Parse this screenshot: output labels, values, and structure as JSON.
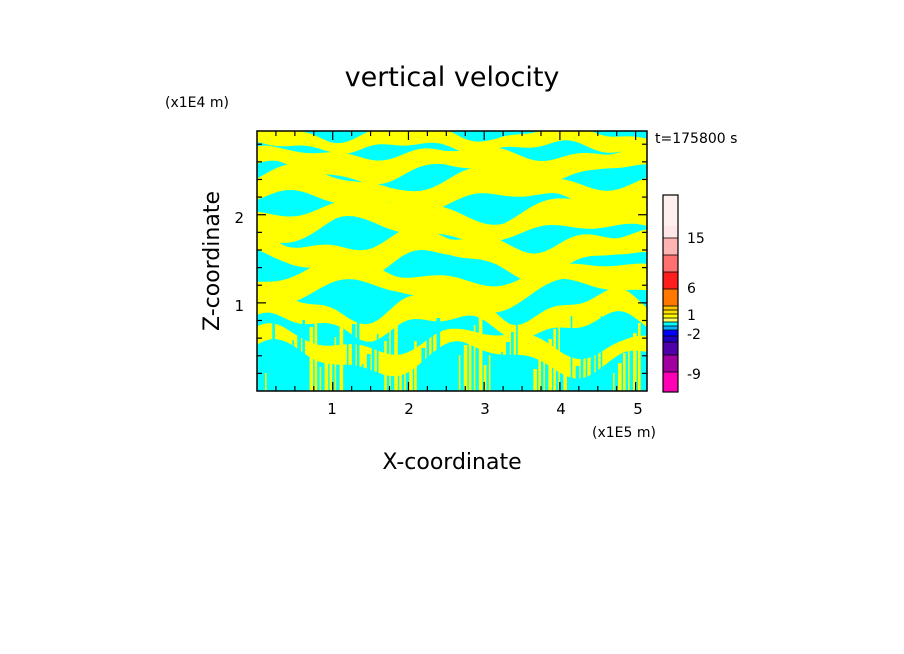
{
  "chart_data": {
    "type": "heatmap",
    "title": "vertical velocity",
    "xlabel": "X-coordinate",
    "ylabel": "Z-coordinate",
    "x_unit": "(x1E5 m)",
    "y_unit": "(x1E4 m)",
    "time_label": "t=175800 s",
    "xlim": [
      0,
      5.15
    ],
    "ylim": [
      0,
      2.95
    ],
    "x_ticks": [
      "1",
      "2",
      "3",
      "4",
      "5"
    ],
    "y_ticks": [
      "1",
      "2"
    ],
    "colorbar": {
      "labels": [
        "15",
        "6",
        "1",
        "-2",
        "-9"
      ]
    },
    "fill_colors": {
      "positive": "#ffff00",
      "negative": "#00ffff"
    }
  }
}
